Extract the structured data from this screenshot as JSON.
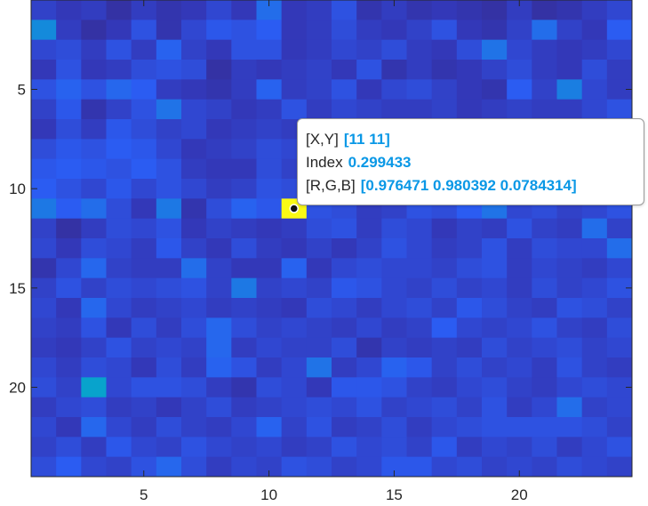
{
  "chart_data": {
    "type": "heatmap",
    "title": "",
    "xlabel": "",
    "ylabel": "",
    "xlim": [
      0.5,
      24.5
    ],
    "ylim": [
      0.5,
      24.5
    ],
    "y_direction": "reverse",
    "x_ticks": [
      5,
      10,
      15,
      20
    ],
    "y_ticks": [
      5,
      10,
      15,
      20
    ],
    "x_tick_labels": [
      "5",
      "10",
      "15",
      "20"
    ],
    "y_tick_labels": [
      "5",
      "10",
      "15",
      "20"
    ],
    "colormap": "parula",
    "index_range": [
      0,
      1
    ],
    "grid": false,
    "highlight": {
      "x": 11,
      "y": 11,
      "color": "#fafa14"
    },
    "values": [
      [
        0.07,
        0.05,
        0.06,
        0.03,
        0.06,
        0.04,
        0.05,
        0.08,
        0.05,
        0.15,
        0.05,
        0.06,
        0.1,
        0.04,
        0.06,
        0.04,
        0.05,
        0.04,
        0.03,
        0.06,
        0.03,
        0.04,
        0.06,
        0.08
      ],
      [
        0.2,
        0.06,
        0.03,
        0.05,
        0.1,
        0.04,
        0.08,
        0.11,
        0.1,
        0.12,
        0.05,
        0.06,
        0.09,
        0.06,
        0.05,
        0.07,
        0.1,
        0.05,
        0.04,
        0.07,
        0.15,
        0.07,
        0.05,
        0.12
      ],
      [
        0.08,
        0.09,
        0.06,
        0.1,
        0.06,
        0.13,
        0.07,
        0.05,
        0.1,
        0.1,
        0.05,
        0.06,
        0.08,
        0.07,
        0.09,
        0.06,
        0.05,
        0.09,
        0.16,
        0.08,
        0.06,
        0.05,
        0.06,
        0.08
      ],
      [
        0.05,
        0.1,
        0.05,
        0.06,
        0.09,
        0.1,
        0.09,
        0.03,
        0.06,
        0.05,
        0.06,
        0.07,
        0.05,
        0.1,
        0.04,
        0.06,
        0.04,
        0.05,
        0.07,
        0.09,
        0.06,
        0.05,
        0.09,
        0.06
      ],
      [
        0.1,
        0.13,
        0.1,
        0.14,
        0.12,
        0.06,
        0.05,
        0.04,
        0.06,
        0.13,
        0.06,
        0.07,
        0.1,
        0.05,
        0.08,
        0.09,
        0.07,
        0.05,
        0.04,
        0.12,
        0.07,
        0.18,
        0.08,
        0.06
      ],
      [
        0.07,
        0.11,
        0.04,
        0.07,
        0.1,
        0.16,
        0.08,
        0.07,
        0.05,
        0.06,
        0.1,
        0.06,
        0.08,
        0.07,
        0.06,
        0.06,
        0.07,
        0.05,
        0.06,
        0.07,
        0.06,
        0.06,
        0.08,
        0.1
      ],
      [
        0.05,
        0.09,
        0.06,
        0.11,
        0.09,
        0.07,
        0.08,
        0.05,
        0.06,
        0.07,
        0.06,
        0.09,
        0.1,
        0.07,
        0.07,
        0.08,
        0.05,
        0.06,
        0.04,
        0.06,
        0.07,
        0.08,
        0.06,
        0.07
      ],
      [
        0.09,
        0.11,
        0.1,
        0.12,
        0.11,
        0.08,
        0.05,
        0.06,
        0.07,
        0.09,
        0.08,
        0.07,
        0.06,
        0.09,
        0.09,
        0.08,
        0.07,
        0.06,
        0.08,
        0.06,
        0.07,
        0.07,
        0.05,
        0.07
      ],
      [
        0.11,
        0.12,
        0.11,
        0.1,
        0.12,
        0.1,
        0.06,
        0.05,
        0.05,
        0.09,
        0.07,
        0.08,
        0.07,
        0.06,
        0.09,
        0.1,
        0.08,
        0.07,
        0.05,
        0.08,
        0.06,
        0.09,
        0.08,
        0.05
      ],
      [
        0.12,
        0.1,
        0.08,
        0.11,
        0.08,
        0.1,
        0.08,
        0.06,
        0.07,
        0.1,
        0.09,
        0.07,
        0.08,
        0.09,
        0.07,
        0.06,
        0.07,
        0.08,
        0.06,
        0.07,
        0.08,
        0.06,
        0.09,
        0.07
      ],
      [
        0.17,
        0.12,
        0.15,
        0.09,
        0.05,
        0.17,
        0.04,
        0.09,
        0.13,
        0.11,
        0.3,
        0.1,
        0.09,
        0.06,
        0.07,
        0.1,
        0.09,
        0.12,
        0.16,
        0.08,
        0.09,
        0.07,
        0.08,
        0.1
      ],
      [
        0.07,
        0.03,
        0.06,
        0.09,
        0.08,
        0.1,
        0.05,
        0.07,
        0.06,
        0.05,
        0.06,
        0.09,
        0.1,
        0.06,
        0.09,
        0.08,
        0.05,
        0.07,
        0.06,
        0.1,
        0.07,
        0.06,
        0.15,
        0.07
      ],
      [
        0.08,
        0.05,
        0.09,
        0.08,
        0.06,
        0.11,
        0.07,
        0.05,
        0.09,
        0.06,
        0.05,
        0.07,
        0.05,
        0.07,
        0.1,
        0.08,
        0.06,
        0.07,
        0.1,
        0.06,
        0.09,
        0.08,
        0.08,
        0.15
      ],
      [
        0.04,
        0.08,
        0.14,
        0.07,
        0.06,
        0.06,
        0.15,
        0.07,
        0.05,
        0.05,
        0.13,
        0.05,
        0.08,
        0.09,
        0.08,
        0.08,
        0.07,
        0.09,
        0.1,
        0.06,
        0.08,
        0.07,
        0.06,
        0.08
      ],
      [
        0.07,
        0.1,
        0.07,
        0.09,
        0.08,
        0.09,
        0.1,
        0.07,
        0.17,
        0.07,
        0.08,
        0.07,
        0.11,
        0.1,
        0.08,
        0.07,
        0.09,
        0.07,
        0.08,
        0.06,
        0.09,
        0.07,
        0.08,
        0.1
      ],
      [
        0.08,
        0.05,
        0.14,
        0.08,
        0.06,
        0.07,
        0.08,
        0.06,
        0.07,
        0.06,
        0.05,
        0.09,
        0.08,
        0.06,
        0.08,
        0.09,
        0.07,
        0.11,
        0.09,
        0.07,
        0.06,
        0.1,
        0.09,
        0.07
      ],
      [
        0.07,
        0.06,
        0.1,
        0.05,
        0.09,
        0.06,
        0.09,
        0.14,
        0.09,
        0.07,
        0.08,
        0.07,
        0.06,
        0.08,
        0.06,
        0.07,
        0.12,
        0.08,
        0.07,
        0.08,
        0.1,
        0.07,
        0.06,
        0.09
      ],
      [
        0.06,
        0.05,
        0.07,
        0.1,
        0.07,
        0.08,
        0.07,
        0.14,
        0.06,
        0.08,
        0.07,
        0.07,
        0.09,
        0.04,
        0.07,
        0.06,
        0.07,
        0.06,
        0.09,
        0.07,
        0.08,
        0.09,
        0.07,
        0.08
      ],
      [
        0.08,
        0.06,
        0.09,
        0.08,
        0.05,
        0.09,
        0.06,
        0.13,
        0.1,
        0.06,
        0.08,
        0.16,
        0.06,
        0.08,
        0.13,
        0.11,
        0.07,
        0.09,
        0.07,
        0.08,
        0.06,
        0.1,
        0.07,
        0.06
      ],
      [
        0.09,
        0.07,
        0.25,
        0.08,
        0.1,
        0.1,
        0.09,
        0.06,
        0.04,
        0.09,
        0.08,
        0.05,
        0.11,
        0.11,
        0.1,
        0.07,
        0.06,
        0.08,
        0.09,
        0.07,
        0.06,
        0.08,
        0.09,
        0.08
      ],
      [
        0.06,
        0.08,
        0.09,
        0.06,
        0.07,
        0.05,
        0.07,
        0.09,
        0.06,
        0.07,
        0.08,
        0.09,
        0.08,
        0.1,
        0.07,
        0.08,
        0.09,
        0.07,
        0.1,
        0.06,
        0.08,
        0.15,
        0.07,
        0.08
      ],
      [
        0.08,
        0.05,
        0.14,
        0.08,
        0.06,
        0.09,
        0.07,
        0.06,
        0.08,
        0.13,
        0.07,
        0.1,
        0.06,
        0.07,
        0.09,
        0.06,
        0.08,
        0.09,
        0.1,
        0.1,
        0.1,
        0.1,
        0.09,
        0.07
      ],
      [
        0.07,
        0.09,
        0.06,
        0.11,
        0.08,
        0.07,
        0.1,
        0.08,
        0.07,
        0.08,
        0.06,
        0.07,
        0.1,
        0.08,
        0.09,
        0.07,
        0.11,
        0.06,
        0.08,
        0.07,
        0.09,
        0.06,
        0.08,
        0.1
      ],
      [
        0.09,
        0.12,
        0.08,
        0.07,
        0.1,
        0.14,
        0.09,
        0.06,
        0.08,
        0.07,
        0.1,
        0.09,
        0.07,
        0.08,
        0.11,
        0.11,
        0.08,
        0.09,
        0.07,
        0.08,
        0.07,
        0.09,
        0.08,
        0.07
      ]
    ]
  },
  "datatip": {
    "xy_label": "[X,Y]",
    "xy_value": "[11 11]",
    "index_label": "Index",
    "index_value": "0.299433",
    "rgb_label": "[R,G,B]",
    "rgb_value": "[0.976471 0.980392 0.0784314]"
  },
  "colors": {
    "datatip_value": "#0a98e6",
    "axis": "#262626",
    "highlight_cell": "#fafa14"
  }
}
